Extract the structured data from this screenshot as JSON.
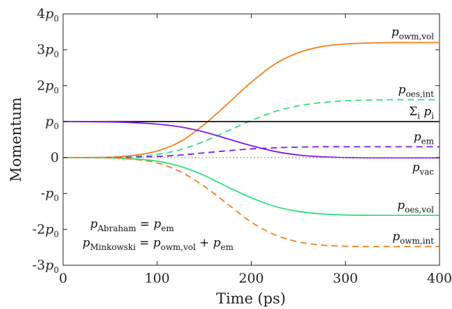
{
  "chart_data": {
    "type": "line",
    "xlabel": "Time (ps)",
    "ylabel": "Momentum",
    "xlim": [
      0,
      400
    ],
    "ylim": [
      -3,
      4
    ],
    "x_ticks": [
      "0",
      "100",
      "200",
      "300",
      "400"
    ],
    "y_ticks": [
      {
        "base": "-3p",
        "sub": "0"
      },
      {
        "base": "-2p",
        "sub": "0"
      },
      {
        "base": "-p",
        "sub": "0"
      },
      {
        "base": "0",
        "sub": ""
      },
      {
        "base": "p",
        "sub": "0"
      },
      {
        "base": "2p",
        "sub": "0"
      },
      {
        "base": "3p",
        "sub": "0"
      },
      {
        "base": "4p",
        "sub": "0"
      }
    ],
    "grid": false,
    "x": [
      0,
      50,
      75,
      100,
      125,
      150,
      175,
      200,
      225,
      250,
      275,
      300,
      325,
      350,
      375,
      400
    ],
    "series": [
      {
        "name": "p_owm,vol",
        "label_base": "p",
        "label_sub": "owm,vol",
        "color": "#f07f1a",
        "dash": "solid",
        "values": [
          0,
          0.01,
          0.06,
          0.18,
          0.45,
          0.92,
          1.5,
          2.1,
          2.6,
          2.92,
          3.09,
          3.16,
          3.19,
          3.2,
          3.2,
          3.2
        ]
      },
      {
        "name": "p_oes,int",
        "label_base": "p",
        "label_sub": "oes,int",
        "color": "#2ee07e",
        "dash": "dashed",
        "values": [
          0,
          0.0,
          0.03,
          0.09,
          0.22,
          0.45,
          0.74,
          1.03,
          1.28,
          1.44,
          1.53,
          1.58,
          1.6,
          1.61,
          1.61,
          1.61
        ]
      },
      {
        "name": "Σ_i p_i",
        "label_base": "Σ",
        "label_sub": "i",
        "label_suffix": " p",
        "label_suffix_sub": "i",
        "color": "#111111",
        "dash": "solid",
        "values": [
          1,
          1,
          1,
          1,
          1,
          1,
          1,
          1,
          1,
          1,
          1,
          1,
          1,
          1,
          1,
          1
        ]
      },
      {
        "name": "p_em",
        "label_base": "p",
        "label_sub": "em",
        "color": "#7a18e8",
        "dash": "dashed",
        "values": [
          0,
          0.0,
          0.01,
          0.03,
          0.07,
          0.13,
          0.19,
          0.24,
          0.27,
          0.29,
          0.3,
          0.3,
          0.3,
          0.3,
          0.3,
          0.3
        ]
      },
      {
        "name": "p_vac",
        "label_base": "p",
        "label_sub": "vac",
        "color": "#7a18e8",
        "dash": "solid",
        "values": [
          1,
          0.99,
          0.97,
          0.93,
          0.85,
          0.71,
          0.52,
          0.33,
          0.17,
          0.07,
          0.02,
          0.0,
          -0.01,
          -0.01,
          -0.01,
          -0.01
        ]
      },
      {
        "name": "zero",
        "label_base": "",
        "label_sub": "",
        "color": "#999999",
        "dash": "dotted",
        "values": [
          0,
          0,
          0,
          0,
          0,
          0,
          0,
          0,
          0,
          0,
          0,
          0,
          0,
          0,
          0,
          0
        ]
      },
      {
        "name": "p_oes,vol",
        "label_base": "p",
        "label_sub": "oes,vol",
        "color": "#2ee07e",
        "dash": "solid",
        "values": [
          0,
          -0.01,
          -0.04,
          -0.1,
          -0.25,
          -0.5,
          -0.82,
          -1.12,
          -1.36,
          -1.5,
          -1.57,
          -1.6,
          -1.61,
          -1.61,
          -1.61,
          -1.61
        ]
      },
      {
        "name": "p_owm,int",
        "label_base": "p",
        "label_sub": "owm,int",
        "color": "#f07f1a",
        "dash": "dashed",
        "values": [
          0,
          -0.01,
          -0.05,
          -0.15,
          -0.4,
          -0.8,
          -1.3,
          -1.8,
          -2.15,
          -2.35,
          -2.44,
          -2.47,
          -2.48,
          -2.48,
          -2.48,
          -2.48
        ]
      }
    ],
    "annotations": [
      {
        "lhs_base": "p",
        "lhs_sub": "Abraham",
        "rhs": "= p",
        "rhs_sub": "em",
        "rhs_tail": "",
        "rhs_tail_sub": ""
      },
      {
        "lhs_base": "p",
        "lhs_sub": "Minkowski",
        "rhs": "= p",
        "rhs_sub": "owm,vol",
        "rhs_tail": " + p",
        "rhs_tail_sub": "em"
      }
    ]
  }
}
